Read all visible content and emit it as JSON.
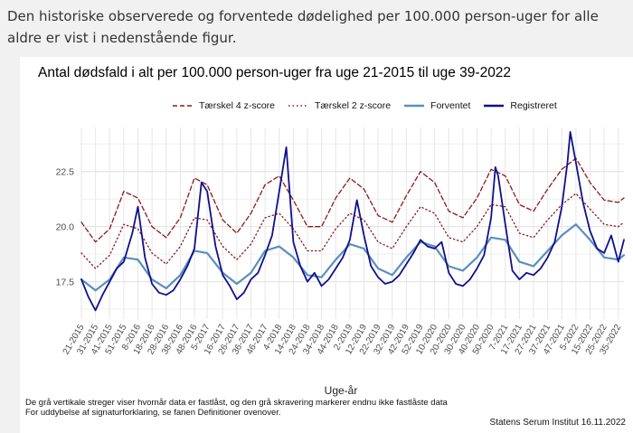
{
  "intro_text": "Den historiske observerede og forventede dødelighed per 100.000 person-uger for alle aldre er vist i nedenstående figur.",
  "colors": {
    "threshold4": "#8b1a1a",
    "threshold2": "#8b1a1a",
    "expected": "#5b8fbe",
    "registered": "#10108c",
    "grid": "#e6e6e6",
    "axis_text": "#4d4d4d"
  },
  "footnote_1": "De grå vertikale streger viser hvornår data er fastlåst, og den grå skravering markerer endnu ikke fastlåste data",
  "footnote_2": "For uddybelse af signaturforklaring, se fanen Definitioner ovenover.",
  "credit": "Statens Serum Institut  16.11.2022",
  "chart_data": {
    "type": "line",
    "title": "Antal dødsfald i alt per 100.000 person-uger fra uge 21-2015 til uge 39-2022",
    "xlabel": "Uge-år",
    "ylabel": "",
    "ylim": [
      15.8,
      24.5
    ],
    "yticks": [
      17.5,
      20.0,
      22.5
    ],
    "ytick_labels": [
      "17.5",
      "20.0",
      "22.5"
    ],
    "xtick_labels": [
      "21-2015",
      "31-2015",
      "41-2015",
      "51-2015",
      "8-2016",
      "18-2016",
      "28-2016",
      "38-2016",
      "48-2016",
      "5-2017",
      "16-2017",
      "26-2017",
      "36-2017",
      "46-2017",
      "4-2018",
      "14-2018",
      "24-2018",
      "34-2018",
      "44-2018",
      "2-2019",
      "12-2019",
      "22-2019",
      "32-2019",
      "42-2019",
      "52-2019",
      "10-2020",
      "20-2020",
      "30-2020",
      "40-2020",
      "50-2020",
      "7-2021",
      "17-2021",
      "27-2021",
      "37-2021",
      "47-2021",
      "5-2022",
      "15-2022",
      "25-2022",
      "35-2022"
    ],
    "grid": true,
    "legend_position": "top",
    "x_domain": {
      "start": "21-2015",
      "end": "39-2022",
      "n_weeks": 384
    },
    "series": [
      {
        "name": "Tærskel 4 z-score",
        "style": "dashed",
        "anchors": [
          {
            "x": "21-2015",
            "y": 20.2
          },
          {
            "x": "31-2015",
            "y": 19.3
          },
          {
            "x": "41-2015",
            "y": 19.9
          },
          {
            "x": "51-2015",
            "y": 21.6
          },
          {
            "x": "8-2016",
            "y": 21.3
          },
          {
            "x": "18-2016",
            "y": 20.0
          },
          {
            "x": "28-2016",
            "y": 19.5
          },
          {
            "x": "38-2016",
            "y": 20.4
          },
          {
            "x": "48-2016",
            "y": 22.2
          },
          {
            "x": "5-2017",
            "y": 21.9
          },
          {
            "x": "16-2017",
            "y": 20.3
          },
          {
            "x": "26-2017",
            "y": 19.7
          },
          {
            "x": "36-2017",
            "y": 20.6
          },
          {
            "x": "46-2017",
            "y": 21.9
          },
          {
            "x": "4-2018",
            "y": 22.3
          },
          {
            "x": "14-2018",
            "y": 21.2
          },
          {
            "x": "24-2018",
            "y": 20.0
          },
          {
            "x": "34-2018",
            "y": 20.0
          },
          {
            "x": "44-2018",
            "y": 21.3
          },
          {
            "x": "2-2019",
            "y": 22.2
          },
          {
            "x": "12-2019",
            "y": 21.7
          },
          {
            "x": "22-2019",
            "y": 20.5
          },
          {
            "x": "32-2019",
            "y": 20.2
          },
          {
            "x": "42-2019",
            "y": 21.4
          },
          {
            "x": "52-2019",
            "y": 22.5
          },
          {
            "x": "10-2020",
            "y": 22.0
          },
          {
            "x": "20-2020",
            "y": 20.7
          },
          {
            "x": "30-2020",
            "y": 20.4
          },
          {
            "x": "40-2020",
            "y": 21.3
          },
          {
            "x": "50-2020",
            "y": 22.6
          },
          {
            "x": "7-2021",
            "y": 22.3
          },
          {
            "x": "17-2021",
            "y": 21.0
          },
          {
            "x": "27-2021",
            "y": 20.7
          },
          {
            "x": "37-2021",
            "y": 21.7
          },
          {
            "x": "47-2021",
            "y": 22.6
          },
          {
            "x": "5-2022",
            "y": 23.1
          },
          {
            "x": "15-2022",
            "y": 22.0
          },
          {
            "x": "25-2022",
            "y": 21.2
          },
          {
            "x": "35-2022",
            "y": 21.1
          },
          {
            "x": "39-2022",
            "y": 21.3
          }
        ]
      },
      {
        "name": "Tærskel 2 z-score",
        "style": "dotted",
        "anchors": [
          {
            "x": "21-2015",
            "y": 18.8
          },
          {
            "x": "31-2015",
            "y": 18.1
          },
          {
            "x": "41-2015",
            "y": 18.7
          },
          {
            "x": "51-2015",
            "y": 20.1
          },
          {
            "x": "8-2016",
            "y": 19.9
          },
          {
            "x": "18-2016",
            "y": 18.8
          },
          {
            "x": "28-2016",
            "y": 18.3
          },
          {
            "x": "38-2016",
            "y": 19.1
          },
          {
            "x": "48-2016",
            "y": 20.4
          },
          {
            "x": "5-2017",
            "y": 20.3
          },
          {
            "x": "16-2017",
            "y": 19.1
          },
          {
            "x": "26-2017",
            "y": 18.5
          },
          {
            "x": "36-2017",
            "y": 19.2
          },
          {
            "x": "46-2017",
            "y": 20.4
          },
          {
            "x": "4-2018",
            "y": 20.6
          },
          {
            "x": "14-2018",
            "y": 19.9
          },
          {
            "x": "24-2018",
            "y": 18.9
          },
          {
            "x": "34-2018",
            "y": 18.9
          },
          {
            "x": "44-2018",
            "y": 19.9
          },
          {
            "x": "2-2019",
            "y": 20.6
          },
          {
            "x": "12-2019",
            "y": 20.3
          },
          {
            "x": "22-2019",
            "y": 19.3
          },
          {
            "x": "32-2019",
            "y": 19.0
          },
          {
            "x": "42-2019",
            "y": 20.0
          },
          {
            "x": "52-2019",
            "y": 20.9
          },
          {
            "x": "10-2020",
            "y": 20.6
          },
          {
            "x": "20-2020",
            "y": 19.5
          },
          {
            "x": "30-2020",
            "y": 19.3
          },
          {
            "x": "40-2020",
            "y": 20.0
          },
          {
            "x": "50-2020",
            "y": 21.0
          },
          {
            "x": "7-2021",
            "y": 20.9
          },
          {
            "x": "17-2021",
            "y": 19.7
          },
          {
            "x": "27-2021",
            "y": 19.5
          },
          {
            "x": "37-2021",
            "y": 20.3
          },
          {
            "x": "47-2021",
            "y": 21.0
          },
          {
            "x": "5-2022",
            "y": 21.5
          },
          {
            "x": "15-2022",
            "y": 20.8
          },
          {
            "x": "25-2022",
            "y": 20.1
          },
          {
            "x": "35-2022",
            "y": 20.0
          },
          {
            "x": "39-2022",
            "y": 20.2
          }
        ]
      },
      {
        "name": "Forventet",
        "style": "solid",
        "anchors": [
          {
            "x": "21-2015",
            "y": 17.6
          },
          {
            "x": "31-2015",
            "y": 17.1
          },
          {
            "x": "41-2015",
            "y": 17.6
          },
          {
            "x": "51-2015",
            "y": 18.6
          },
          {
            "x": "8-2016",
            "y": 18.5
          },
          {
            "x": "18-2016",
            "y": 17.6
          },
          {
            "x": "28-2016",
            "y": 17.2
          },
          {
            "x": "38-2016",
            "y": 17.8
          },
          {
            "x": "48-2016",
            "y": 18.9
          },
          {
            "x": "5-2017",
            "y": 18.8
          },
          {
            "x": "16-2017",
            "y": 17.9
          },
          {
            "x": "26-2017",
            "y": 17.4
          },
          {
            "x": "36-2017",
            "y": 17.9
          },
          {
            "x": "46-2017",
            "y": 18.9
          },
          {
            "x": "4-2018",
            "y": 19.1
          },
          {
            "x": "14-2018",
            "y": 18.6
          },
          {
            "x": "24-2018",
            "y": 17.8
          },
          {
            "x": "34-2018",
            "y": 17.7
          },
          {
            "x": "44-2018",
            "y": 18.5
          },
          {
            "x": "2-2019",
            "y": 19.2
          },
          {
            "x": "12-2019",
            "y": 19.0
          },
          {
            "x": "22-2019",
            "y": 18.1
          },
          {
            "x": "32-2019",
            "y": 17.8
          },
          {
            "x": "42-2019",
            "y": 18.6
          },
          {
            "x": "52-2019",
            "y": 19.3
          },
          {
            "x": "10-2020",
            "y": 19.1
          },
          {
            "x": "20-2020",
            "y": 18.2
          },
          {
            "x": "30-2020",
            "y": 18.0
          },
          {
            "x": "40-2020",
            "y": 18.6
          },
          {
            "x": "50-2020",
            "y": 19.5
          },
          {
            "x": "7-2021",
            "y": 19.4
          },
          {
            "x": "17-2021",
            "y": 18.4
          },
          {
            "x": "27-2021",
            "y": 18.2
          },
          {
            "x": "37-2021",
            "y": 18.9
          },
          {
            "x": "47-2021",
            "y": 19.6
          },
          {
            "x": "5-2022",
            "y": 20.1
          },
          {
            "x": "15-2022",
            "y": 19.4
          },
          {
            "x": "25-2022",
            "y": 18.6
          },
          {
            "x": "35-2022",
            "y": 18.5
          },
          {
            "x": "39-2022",
            "y": 18.7
          }
        ]
      },
      {
        "name": "Registreret",
        "style": "solid",
        "anchors": [
          {
            "x": "21-2015",
            "y": 17.6
          },
          {
            "x": "26-2015",
            "y": 16.8
          },
          {
            "x": "31-2015",
            "y": 16.2
          },
          {
            "x": "36-2015",
            "y": 16.9
          },
          {
            "x": "41-2015",
            "y": 17.5
          },
          {
            "x": "46-2015",
            "y": 18.1
          },
          {
            "x": "51-2015",
            "y": 18.4
          },
          {
            "x": "4-2016",
            "y": 19.7
          },
          {
            "x": "8-2016",
            "y": 20.9
          },
          {
            "x": "13-2016",
            "y": 18.6
          },
          {
            "x": "18-2016",
            "y": 17.4
          },
          {
            "x": "23-2016",
            "y": 17.0
          },
          {
            "x": "28-2016",
            "y": 16.9
          },
          {
            "x": "33-2016",
            "y": 17.1
          },
          {
            "x": "38-2016",
            "y": 17.6
          },
          {
            "x": "43-2016",
            "y": 18.2
          },
          {
            "x": "48-2016",
            "y": 19.0
          },
          {
            "x": "1-2017",
            "y": 22.0
          },
          {
            "x": "5-2017",
            "y": 21.6
          },
          {
            "x": "11-2017",
            "y": 19.1
          },
          {
            "x": "16-2017",
            "y": 17.8
          },
          {
            "x": "21-2017",
            "y": 17.3
          },
          {
            "x": "26-2017",
            "y": 16.7
          },
          {
            "x": "31-2017",
            "y": 17.0
          },
          {
            "x": "36-2017",
            "y": 17.6
          },
          {
            "x": "41-2017",
            "y": 17.9
          },
          {
            "x": "46-2017",
            "y": 18.7
          },
          {
            "x": "51-2017",
            "y": 19.6
          },
          {
            "x": "4-2018",
            "y": 21.6
          },
          {
            "x": "9-2018",
            "y": 23.6
          },
          {
            "x": "14-2018",
            "y": 19.3
          },
          {
            "x": "19-2018",
            "y": 18.2
          },
          {
            "x": "24-2018",
            "y": 17.5
          },
          {
            "x": "29-2018",
            "y": 17.9
          },
          {
            "x": "34-2018",
            "y": 17.3
          },
          {
            "x": "39-2018",
            "y": 17.6
          },
          {
            "x": "44-2018",
            "y": 18.1
          },
          {
            "x": "49-2018",
            "y": 18.6
          },
          {
            "x": "2-2019",
            "y": 19.4
          },
          {
            "x": "7-2019",
            "y": 21.2
          },
          {
            "x": "12-2019",
            "y": 19.6
          },
          {
            "x": "17-2019",
            "y": 18.2
          },
          {
            "x": "22-2019",
            "y": 17.7
          },
          {
            "x": "27-2019",
            "y": 17.4
          },
          {
            "x": "32-2019",
            "y": 17.5
          },
          {
            "x": "37-2019",
            "y": 17.8
          },
          {
            "x": "42-2019",
            "y": 18.3
          },
          {
            "x": "47-2019",
            "y": 18.8
          },
          {
            "x": "52-2019",
            "y": 19.4
          },
          {
            "x": "5-2020",
            "y": 19.1
          },
          {
            "x": "10-2020",
            "y": 19.0
          },
          {
            "x": "15-2020",
            "y": 19.3
          },
          {
            "x": "20-2020",
            "y": 17.9
          },
          {
            "x": "25-2020",
            "y": 17.4
          },
          {
            "x": "30-2020",
            "y": 17.3
          },
          {
            "x": "35-2020",
            "y": 17.6
          },
          {
            "x": "40-2020",
            "y": 18.1
          },
          {
            "x": "45-2020",
            "y": 18.7
          },
          {
            "x": "50-2020",
            "y": 20.4
          },
          {
            "x": "53-2020",
            "y": 22.7
          },
          {
            "x": "2-2021",
            "y": 22.3
          },
          {
            "x": "7-2021",
            "y": 20.1
          },
          {
            "x": "12-2021",
            "y": 18.0
          },
          {
            "x": "17-2021",
            "y": 17.6
          },
          {
            "x": "22-2021",
            "y": 17.9
          },
          {
            "x": "27-2021",
            "y": 17.8
          },
          {
            "x": "32-2021",
            "y": 18.1
          },
          {
            "x": "37-2021",
            "y": 18.6
          },
          {
            "x": "42-2021",
            "y": 19.3
          },
          {
            "x": "47-2021",
            "y": 20.9
          },
          {
            "x": "51-2021",
            "y": 22.9
          },
          {
            "x": "1-2022",
            "y": 24.3
          },
          {
            "x": "5-2022",
            "y": 22.9
          },
          {
            "x": "10-2022",
            "y": 21.1
          },
          {
            "x": "15-2022",
            "y": 19.8
          },
          {
            "x": "20-2022",
            "y": 19.0
          },
          {
            "x": "25-2022",
            "y": 18.8
          },
          {
            "x": "30-2022",
            "y": 19.6
          },
          {
            "x": "35-2022",
            "y": 18.4
          },
          {
            "x": "39-2022",
            "y": 19.4
          }
        ]
      }
    ]
  }
}
